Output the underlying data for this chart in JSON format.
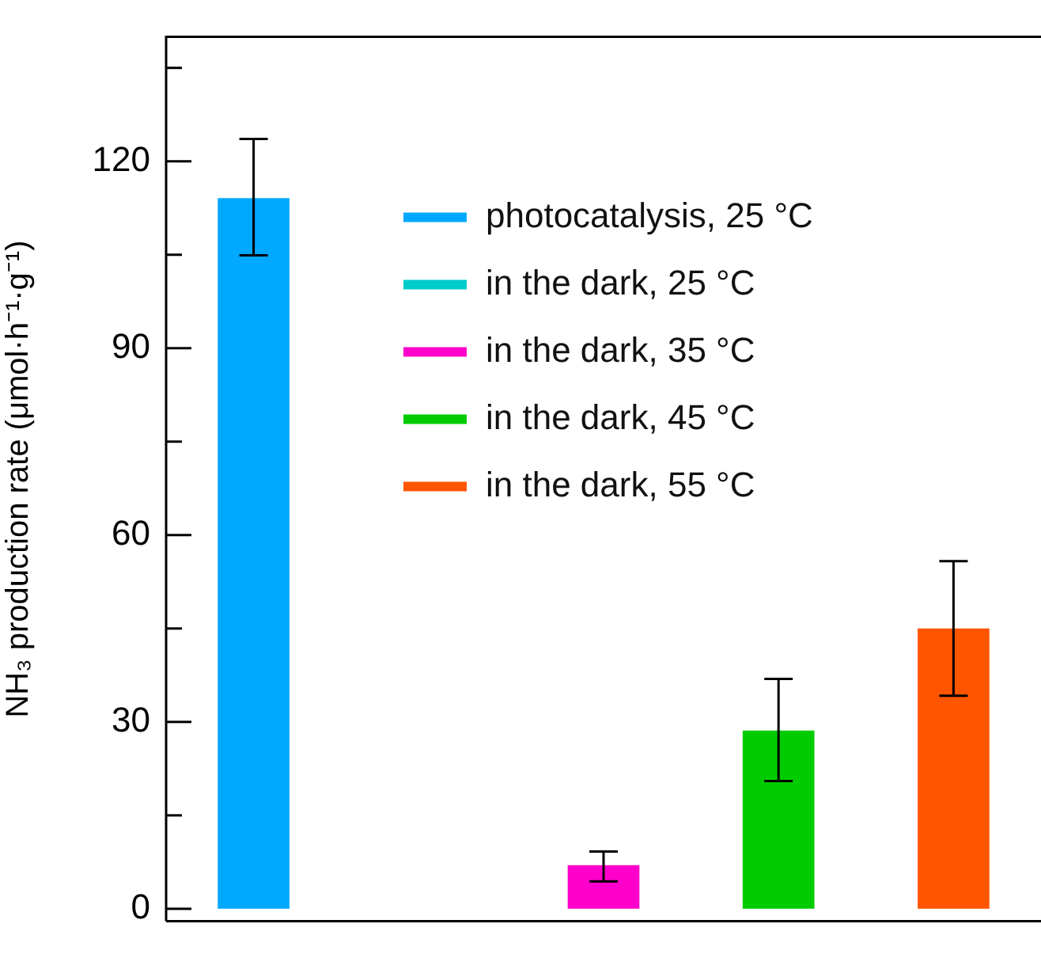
{
  "chart_data": {
    "type": "bar",
    "ylabel": "NH₃ production rate (μmol·h⁻¹·g⁻¹)",
    "categories": [
      null,
      null,
      null,
      null,
      null
    ],
    "series": [
      {
        "name": "photocatalysis, 25 °C",
        "color": "#00a8ff",
        "values": [
          114.1,
          null,
          null,
          null,
          null
        ],
        "errors": [
          [
            104.9,
            123.6
          ],
          null,
          null,
          null,
          null
        ]
      },
      {
        "name": "in the dark, 25 °C",
        "color": "#00cccc",
        "values": [
          null,
          0,
          null,
          null,
          null
        ]
      },
      {
        "name": "in the dark, 35 °C",
        "color": "#ff00cc",
        "values": [
          null,
          null,
          7.0,
          null,
          null
        ],
        "errors": [
          null,
          null,
          [
            4.4,
            9.2
          ],
          null,
          null
        ]
      },
      {
        "name": "in the dark, 45 °C",
        "color": "#00cc00",
        "values": [
          null,
          null,
          null,
          28.6,
          null
        ],
        "errors": [
          null,
          null,
          null,
          [
            20.5,
            36.9
          ],
          null
        ]
      },
      {
        "name": "in the dark, 55 °C",
        "color": "#ff5500",
        "values": [
          null,
          null,
          null,
          null,
          45.0
        ],
        "errors": [
          null,
          null,
          null,
          null,
          [
            34.2,
            55.8
          ]
        ]
      }
    ],
    "ylim": [
      -2,
      140
    ],
    "yticks": [
      0,
      {
        "value": 15,
        "label": null
      },
      30,
      {
        "value": 45,
        "label": null
      },
      60,
      {
        "value": 75,
        "label": null
      },
      90,
      {
        "value": 105,
        "label": null
      },
      120,
      {
        "value": 135,
        "label": null
      }
    ],
    "legend": "top right",
    "grid": false,
    "tick_labels": "y"
  }
}
